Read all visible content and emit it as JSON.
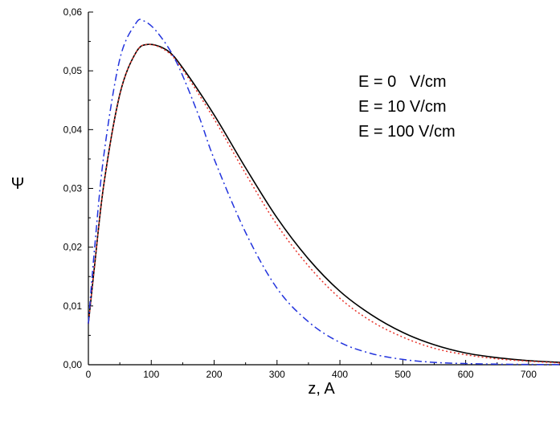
{
  "chart_data": {
    "type": "line",
    "title": "",
    "xlabel": "z, A",
    "ylabel": "Ψ",
    "xlim": [
      0,
      750
    ],
    "ylim": [
      0,
      0.06
    ],
    "x_ticks": [
      {
        "value": 0,
        "label": "0"
      },
      {
        "value": 100,
        "label": "100"
      },
      {
        "value": 200,
        "label": "200"
      },
      {
        "value": 300,
        "label": "300"
      },
      {
        "value": 400,
        "label": "400"
      },
      {
        "value": 500,
        "label": "500"
      },
      {
        "value": 600,
        "label": "600"
      },
      {
        "value": 700,
        "label": "700"
      }
    ],
    "y_ticks": [
      {
        "value": 0,
        "label": "0,00"
      },
      {
        "value": 0.01,
        "label": "0,01"
      },
      {
        "value": 0.02,
        "label": "0,02"
      },
      {
        "value": 0.03,
        "label": "0,03"
      },
      {
        "value": 0.04,
        "label": "0,04"
      },
      {
        "value": 0.05,
        "label": "0,05"
      },
      {
        "value": 0.06,
        "label": "0,06"
      }
    ],
    "grid": false,
    "legend": {
      "placement": "top-right",
      "entries": [
        "E = 0   V/cm",
        "E = 10 V/cm",
        "E = 100 V/cm"
      ]
    },
    "series": [
      {
        "name": "E = 0   V/cm",
        "color": "#000000",
        "style": "solid",
        "x": [
          0,
          10,
          25,
          50,
          75,
          95,
          125,
          150,
          200,
          250,
          300,
          350,
          400,
          450,
          500,
          550,
          600,
          650,
          700,
          750
        ],
        "y": [
          0.007,
          0.017,
          0.031,
          0.046,
          0.053,
          0.0545,
          0.0535,
          0.0505,
          0.0425,
          0.0335,
          0.025,
          0.018,
          0.0125,
          0.0085,
          0.0055,
          0.0034,
          0.002,
          0.0012,
          0.0007,
          0.0004
        ]
      },
      {
        "name": "E = 10 V/cm",
        "color": "#e8332a",
        "style": "dotted",
        "x": [
          0,
          10,
          25,
          50,
          75,
          95,
          125,
          150,
          200,
          250,
          300,
          350,
          400,
          450,
          500,
          550,
          600,
          650,
          700,
          750
        ],
        "y": [
          0.007,
          0.017,
          0.031,
          0.046,
          0.053,
          0.0545,
          0.0533,
          0.0502,
          0.0418,
          0.0325,
          0.0238,
          0.0168,
          0.0113,
          0.0074,
          0.0047,
          0.0028,
          0.0017,
          0.001,
          0.0006,
          0.0003
        ]
      },
      {
        "name": "E = 100 V/cm",
        "color": "#2233dd",
        "style": "dashdot",
        "x": [
          0,
          10,
          25,
          50,
          75,
          88,
          110,
          140,
          175,
          200,
          250,
          300,
          350,
          400,
          450,
          500,
          550,
          600,
          650,
          700,
          750
        ],
        "y": [
          0.007,
          0.02,
          0.036,
          0.052,
          0.058,
          0.0585,
          0.0565,
          0.0515,
          0.0425,
          0.035,
          0.0225,
          0.013,
          0.0073,
          0.0038,
          0.0019,
          0.0009,
          0.0004,
          0.0002,
          0.0001,
          5e-05,
          2e-05
        ]
      }
    ]
  }
}
